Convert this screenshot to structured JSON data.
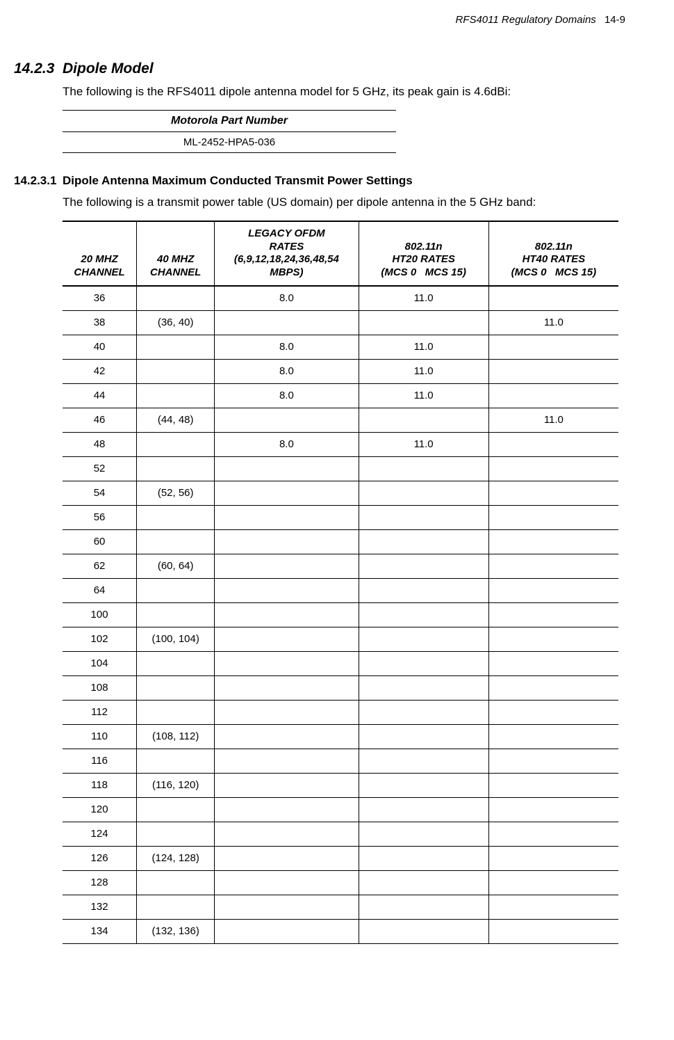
{
  "header": {
    "doc_title": "RFS4011 Regulatory Domains",
    "page_number": "14-9"
  },
  "section": {
    "number": "14.2.3",
    "title": "Dipole Model",
    "intro": "The following is the RFS4011 dipole antenna model for 5 GHz, its peak gain is 4.6dBi:"
  },
  "part_table": {
    "header": "Motorola Part Number",
    "value": "ML-2452-HPA5-036"
  },
  "subsection": {
    "number": "14.2.3.1",
    "title": "Dipole Antenna Maximum Conducted Transmit Power Settings",
    "intro": "The following is a transmit power table (US domain) per dipole antenna in the 5 GHz band:"
  },
  "power_table": {
    "columns": [
      "20 MHZ CHANNEL",
      "40 MHZ CHANNEL",
      "LEGACY OFDM RATES (6,9,12,18,24,36,48,54 MBPS)",
      "802.11n HT20 RATES (MCS 0   MCS 15)",
      "802.11n HT40 RATES (MCS 0   MCS 15)"
    ],
    "col_html": [
      "20 MHZ<br>CHANNEL",
      "40 MHZ<br>CHANNEL",
      "LEGACY OFDM<br>RATES<br>(6,9,12,18,24,36,48,54<br>MBPS)",
      "802.11n<br>HT20 RATES<br>(MCS 0&nbsp;&nbsp;&nbsp;MCS 15)",
      "802.11n<br>HT40 RATES<br>(MCS 0&nbsp;&nbsp;&nbsp;MCS 15)"
    ],
    "rows": [
      [
        "36",
        "",
        "8.0",
        "11.0",
        ""
      ],
      [
        "38",
        "(36, 40)",
        "",
        "",
        "11.0"
      ],
      [
        "40",
        "",
        "8.0",
        "11.0",
        ""
      ],
      [
        "42",
        "",
        "8.0",
        "11.0",
        ""
      ],
      [
        "44",
        "",
        "8.0",
        "11.0",
        ""
      ],
      [
        "46",
        "(44, 48)",
        "",
        "",
        "11.0"
      ],
      [
        "48",
        "",
        "8.0",
        "11.0",
        ""
      ],
      [
        "52",
        "",
        "",
        "",
        ""
      ],
      [
        "54",
        "(52, 56)",
        "",
        "",
        ""
      ],
      [
        "56",
        "",
        "",
        "",
        ""
      ],
      [
        "60",
        "",
        "",
        "",
        ""
      ],
      [
        "62",
        "(60, 64)",
        "",
        "",
        ""
      ],
      [
        "64",
        "",
        "",
        "",
        ""
      ],
      [
        "100",
        "",
        "",
        "",
        ""
      ],
      [
        "102",
        "(100, 104)",
        "",
        "",
        ""
      ],
      [
        "104",
        "",
        "",
        "",
        ""
      ],
      [
        "108",
        "",
        "",
        "",
        ""
      ],
      [
        "112",
        "",
        "",
        "",
        ""
      ],
      [
        "110",
        "(108, 112)",
        "",
        "",
        ""
      ],
      [
        "116",
        "",
        "",
        "",
        ""
      ],
      [
        "118",
        "(116, 120)",
        "",
        "",
        ""
      ],
      [
        "120",
        "",
        "",
        "",
        ""
      ],
      [
        "124",
        "",
        "",
        "",
        ""
      ],
      [
        "126",
        "(124, 128)",
        "",
        "",
        ""
      ],
      [
        "128",
        "",
        "",
        "",
        ""
      ],
      [
        "132",
        "",
        "",
        "",
        ""
      ],
      [
        "134",
        "(132, 136)",
        "",
        "",
        ""
      ]
    ]
  }
}
